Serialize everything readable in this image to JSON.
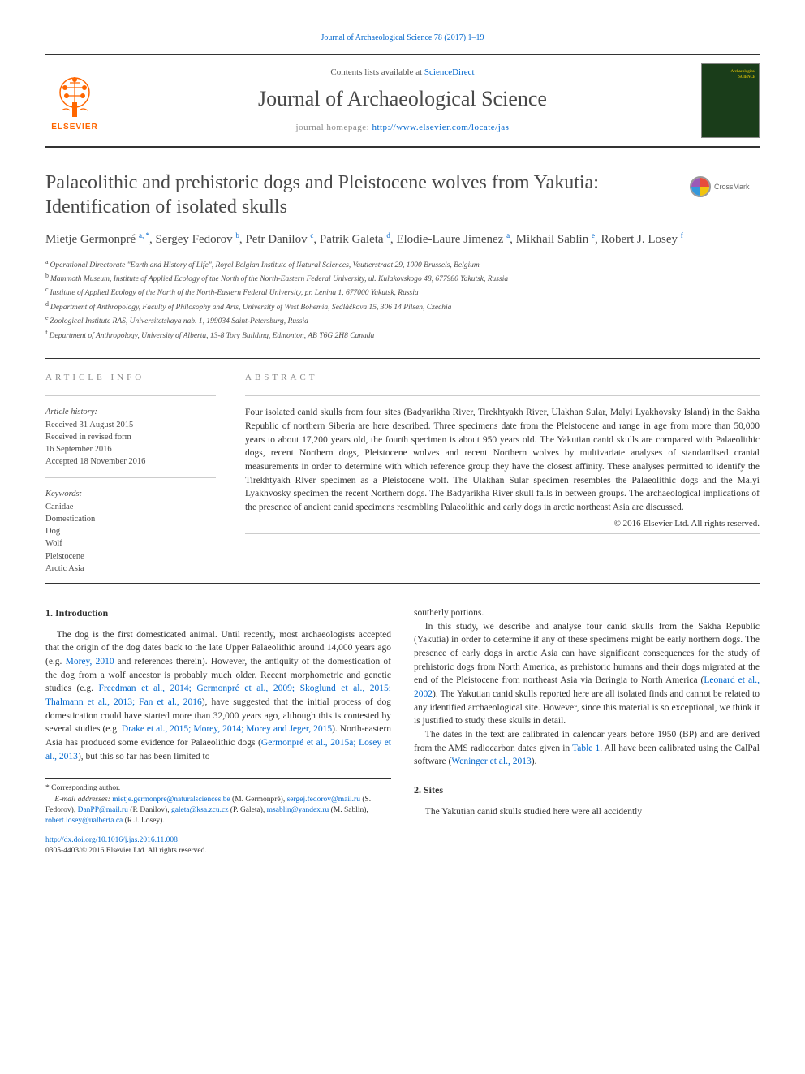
{
  "top_reference": "Journal of Archaeological Science 78 (2017) 1–19",
  "header": {
    "contents_prefix": "Contents lists available at ",
    "contents_link": "ScienceDirect",
    "journal_title": "Journal of Archaeological Science",
    "homepage_prefix": "journal homepage: ",
    "homepage_link": "http://www.elsevier.com/locate/jas",
    "publisher_name": "ELSEVIER",
    "cover_title_line1": "Archaeological",
    "cover_title_line2": "SCIENCE"
  },
  "crossmark_label": "CrossMark",
  "article": {
    "title": "Palaeolithic and prehistoric dogs and Pleistocene wolves from Yakutia: Identification of isolated skulls",
    "authors": [
      {
        "name": "Mietje Germonpré",
        "marks": "a, *"
      },
      {
        "name": "Sergey Fedorov",
        "marks": "b"
      },
      {
        "name": "Petr Danilov",
        "marks": "c"
      },
      {
        "name": "Patrik Galeta",
        "marks": "d"
      },
      {
        "name": "Elodie-Laure Jimenez",
        "marks": "a"
      },
      {
        "name": "Mikhail Sablin",
        "marks": "e"
      },
      {
        "name": "Robert J. Losey",
        "marks": "f"
      }
    ],
    "affiliations": [
      {
        "mark": "a",
        "text": "Operational Directorate \"Earth and History of Life\", Royal Belgian Institute of Natural Sciences, Vautierstraat 29, 1000 Brussels, Belgium"
      },
      {
        "mark": "b",
        "text": "Mammoth Museum, Institute of Applied Ecology of the North of the North-Eastern Federal University, ul. Kulakovskogo 48, 677980 Yakutsk, Russia"
      },
      {
        "mark": "c",
        "text": "Institute of Applied Ecology of the North of the North-Eastern Federal University, pr. Lenina 1, 677000 Yakutsk, Russia"
      },
      {
        "mark": "d",
        "text": "Department of Anthropology, Faculty of Philosophy and Arts, University of West Bohemia, Sedláčkova 15, 306 14 Pilsen, Czechia"
      },
      {
        "mark": "e",
        "text": "Zoological Institute RAS, Universitetskaya nab. 1, 199034 Saint-Petersburg, Russia"
      },
      {
        "mark": "f",
        "text": "Department of Anthropology, University of Alberta, 13-8 Tory Building, Edmonton, AB T6G 2H8 Canada"
      }
    ]
  },
  "info": {
    "section_label": "ARTICLE INFO",
    "history_label": "Article history:",
    "history": [
      "Received 31 August 2015",
      "Received in revised form",
      "16 September 2016",
      "Accepted 18 November 2016"
    ],
    "keywords_label": "Keywords:",
    "keywords": [
      "Canidae",
      "Domestication",
      "Dog",
      "Wolf",
      "Pleistocene",
      "Arctic Asia"
    ]
  },
  "abstract": {
    "section_label": "ABSTRACT",
    "text": "Four isolated canid skulls from four sites (Badyarikha River, Tirekhtyakh River, Ulakhan Sular, Malyi Lyakhovsky Island) in the Sakha Republic of northern Siberia are here described. Three specimens date from the Pleistocene and range in age from more than 50,000 years to about 17,200 years old, the fourth specimen is about 950 years old. The Yakutian canid skulls are compared with Palaeolithic dogs, recent Northern dogs, Pleistocene wolves and recent Northern wolves by multivariate analyses of standardised cranial measurements in order to determine with which reference group they have the closest affinity. These analyses permitted to identify the Tirekhtyakh River specimen as a Pleistocene wolf. The Ulakhan Sular specimen resembles the Palaeolithic dogs and the Malyi Lyakhvosky specimen the recent Northern dogs. The Badyarikha River skull falls in between groups. The archaeological implications of the presence of ancient canid specimens resembling Palaeolithic and early dogs in arctic northeast Asia are discussed.",
    "copyright": "© 2016 Elsevier Ltd. All rights reserved."
  },
  "body": {
    "section1_title": "1. Introduction",
    "section1_p1_a": "The dog is the first domesticated animal. Until recently, most archaeologists accepted that the origin of the dog dates back to the late Upper Palaeolithic around 14,000 years ago (e.g. ",
    "section1_p1_ref1": "Morey, 2010",
    "section1_p1_b": " and references therein). However, the antiquity of the domestication of the dog from a wolf ancestor is probably much older. Recent morphometric and genetic studies (e.g. ",
    "section1_p1_ref2": "Freedman et al., 2014; Germonpré et al., 2009; Skoglund et al., 2015; Thalmann et al., 2013; Fan et al., 2016",
    "section1_p1_c": "), have suggested that the initial process of dog domestication could have started more than 32,000 years ago, although this is contested by several studies (e.g. ",
    "section1_p1_ref3": "Drake et al., 2015; Morey, 2014; Morey and Jeger, 2015",
    "section1_p1_d": "). North-eastern Asia has produced some evidence for Palaeolithic dogs (",
    "section1_p1_ref4": "Germonpré et al., 2015a; Losey et al., 2013",
    "section1_p1_e": "), but this so far has been limited to ",
    "col2_p0": "southerly portions.",
    "col2_p1_a": "In this study, we describe and analyse four canid skulls from the Sakha Republic (Yakutia) in order to determine if any of these specimens might be early northern dogs. The presence of early dogs in arctic Asia can have significant consequences for the study of prehistoric dogs from North America, as prehistoric humans and their dogs migrated at the end of the Pleistocene from northeast Asia via Beringia to North America (",
    "col2_p1_ref1": "Leonard et al., 2002",
    "col2_p1_b": "). The Yakutian canid skulls reported here are all isolated finds and cannot be related to any identified archaeological site. However, since this material is so exceptional, we think it is justified to study these skulls in detail.",
    "col2_p2_a": "The dates in the text are calibrated in calendar years before 1950 (BP) and are derived from the AMS radiocarbon dates given in ",
    "col2_p2_ref1": "Table 1",
    "col2_p2_b": ". All have been calibrated using the CalPal software (",
    "col2_p2_ref2": "Weninger et al., 2013",
    "col2_p2_c": ").",
    "section2_title": "2. Sites",
    "section2_p1": "The Yakutian canid skulls studied here were all accidently"
  },
  "footer": {
    "corresponding": "* Corresponding author.",
    "email_label": "E-mail addresses:",
    "emails": [
      {
        "addr": "mietje.germonpre@naturalsciences.be",
        "who": "(M. Germonpré),"
      },
      {
        "addr": "sergej.fedorov@mail.ru",
        "who": "(S. Fedorov),"
      },
      {
        "addr": "DanPP@mail.ru",
        "who": "(P. Danilov),"
      },
      {
        "addr": "galeta@ksa.zcu.cz",
        "who": "(P. Galeta),"
      },
      {
        "addr": "msablin@yandex.ru",
        "who": "(M. Sablin),"
      },
      {
        "addr": "robert.losey@ualberta.ca",
        "who": "(R.J. Losey)."
      }
    ],
    "doi": "http://dx.doi.org/10.1016/j.jas.2016.11.008",
    "issn_line": "0305-4403/© 2016 Elsevier Ltd. All rights reserved."
  },
  "colors": {
    "link": "#0066cc",
    "elsevier_orange": "#ff6600",
    "rule": "#333333",
    "muted": "#888888",
    "cover_bg": "#1a3d1a",
    "cover_gold": "#ffd700"
  }
}
